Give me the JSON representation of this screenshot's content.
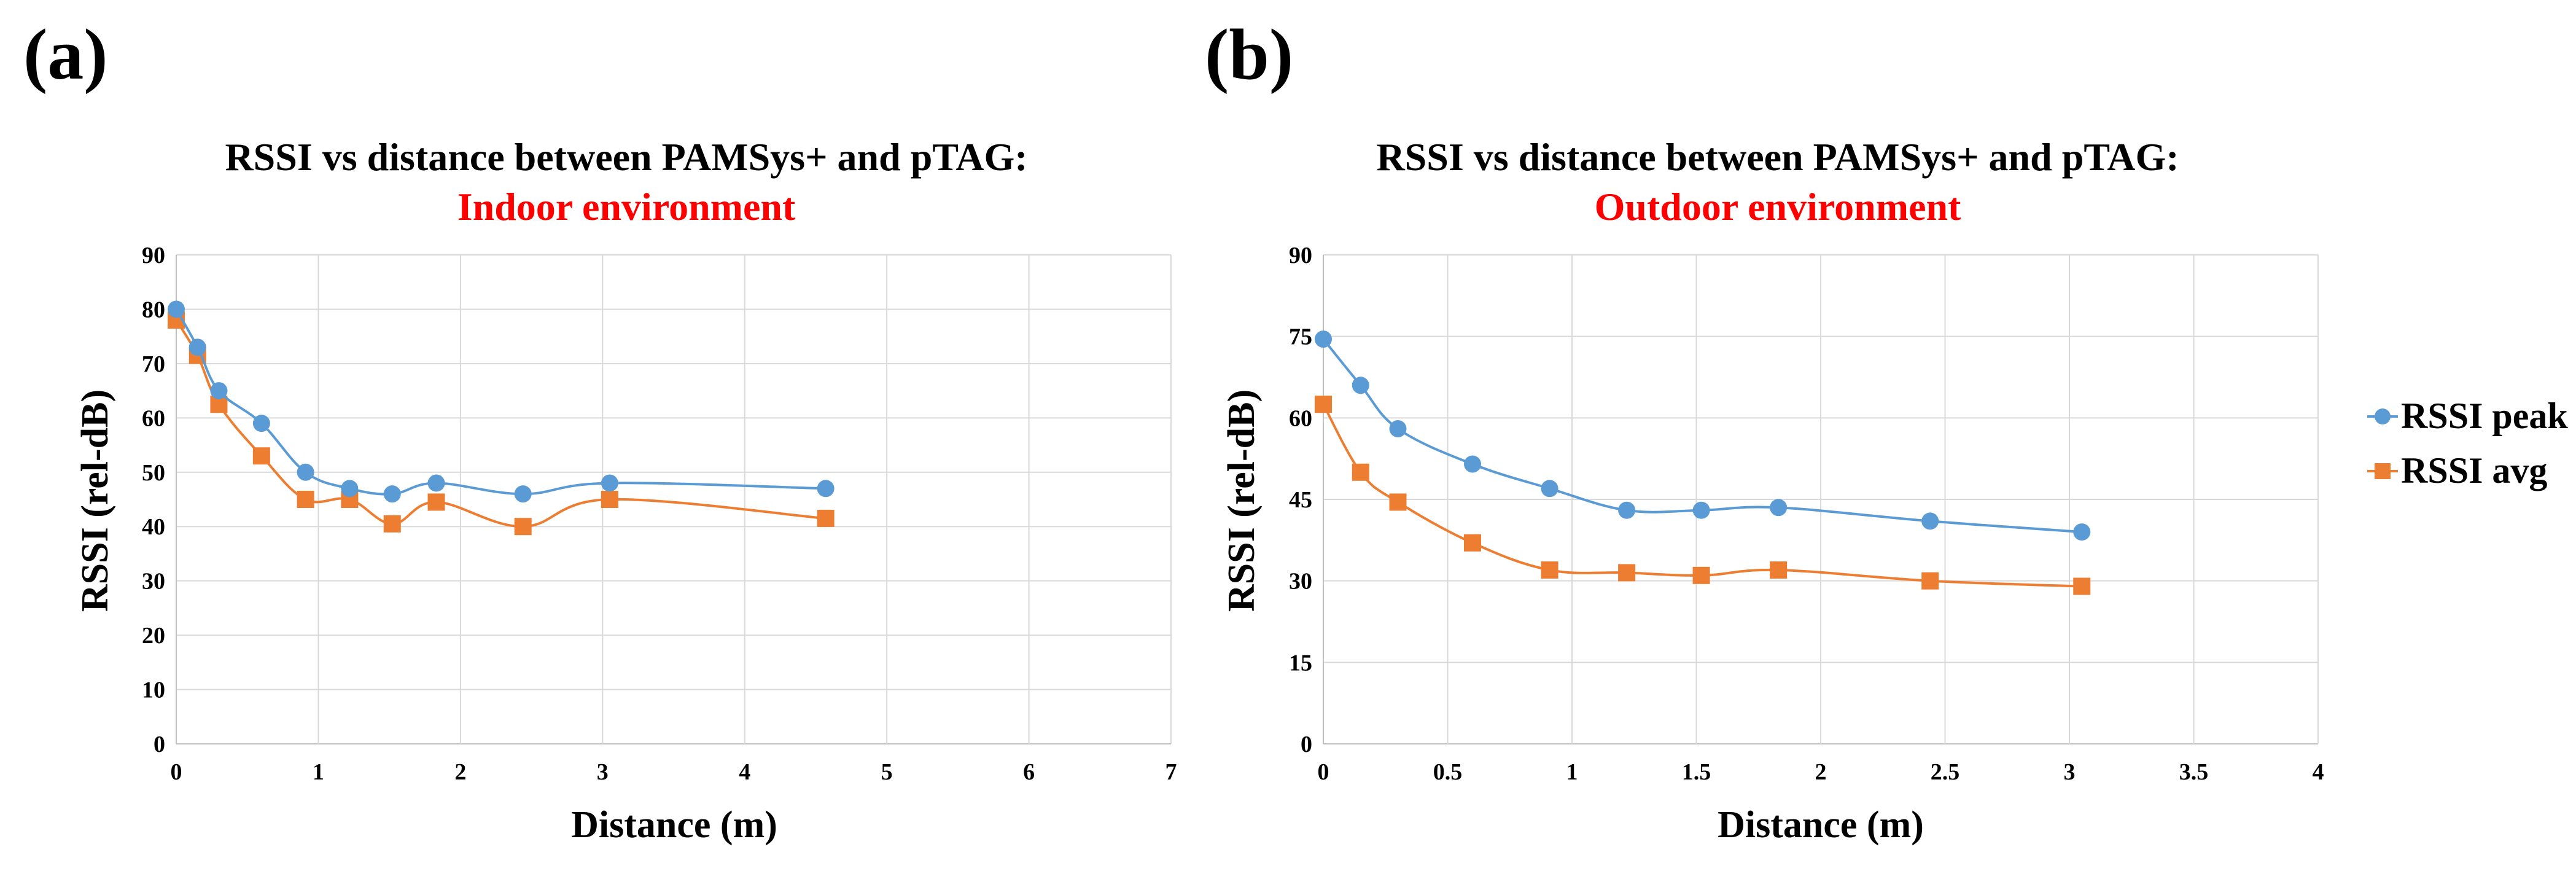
{
  "colors": {
    "peak": "#5b9bd5",
    "avg": "#ed7d31",
    "subtitle": "#ff0000",
    "grid": "#d9d9d9",
    "text": "#000000"
  },
  "legend": {
    "peak_label": "RSSI peak",
    "avg_label": "RSSI avg"
  },
  "chart_data": [
    {
      "panel_label": "(a)",
      "type": "line",
      "title": "RSSI vs distance between PAMSys+ and pTAG:",
      "subtitle": "Indoor environment",
      "xlabel": "Distance (m)",
      "ylabel": "RSSI (rel-dB)",
      "xlim": [
        0,
        7
      ],
      "ylim": [
        0,
        90
      ],
      "xticks": [
        0,
        1,
        2,
        3,
        4,
        5,
        6,
        7
      ],
      "xtick_labels": [
        "0",
        "1",
        "2",
        "3",
        "4",
        "5",
        "6",
        "7"
      ],
      "yticks": [
        0,
        10,
        20,
        30,
        40,
        50,
        60,
        70,
        80,
        90
      ],
      "ytick_labels": [
        "0",
        "10",
        "20",
        "30",
        "40",
        "50",
        "60",
        "70",
        "80",
        "90"
      ],
      "x": [
        0,
        0.15,
        0.3,
        0.6,
        0.91,
        1.22,
        1.52,
        1.83,
        2.44,
        3.05,
        4.57
      ],
      "series": [
        {
          "name": "RSSI peak",
          "marker": "circle",
          "values": [
            80,
            73,
            65,
            59,
            50,
            47,
            46,
            48,
            46,
            48,
            47
          ]
        },
        {
          "name": "RSSI avg",
          "marker": "square",
          "values": [
            78,
            71.5,
            62.5,
            53,
            45,
            45,
            40.5,
            44.5,
            40,
            45,
            41.5
          ]
        }
      ]
    },
    {
      "panel_label": "(b)",
      "type": "line",
      "title": "RSSI vs distance between PAMSys+ and pTAG:",
      "subtitle": "Outdoor environment",
      "xlabel": "Distance (m)",
      "ylabel": "RSSI (rel-dB)",
      "xlim": [
        0,
        4
      ],
      "ylim": [
        0,
        90
      ],
      "xticks": [
        0,
        0.5,
        1,
        1.5,
        2,
        2.5,
        3,
        3.5,
        4
      ],
      "xtick_labels": [
        "0",
        "0.5",
        "1",
        "1.5",
        "2",
        "2.5",
        "3",
        "3.5",
        "4"
      ],
      "yticks": [
        0,
        15,
        30,
        45,
        60,
        75,
        90
      ],
      "ytick_labels": [
        "0",
        "15",
        "30",
        "45",
        "60",
        "75",
        "90"
      ],
      "x": [
        0,
        0.15,
        0.3,
        0.6,
        0.91,
        1.22,
        1.52,
        1.83,
        2.44,
        3.05
      ],
      "series": [
        {
          "name": "RSSI peak",
          "marker": "circle",
          "values": [
            74.5,
            66,
            58,
            51.5,
            47,
            43,
            43,
            43.5,
            41,
            39
          ]
        },
        {
          "name": "RSSI avg",
          "marker": "square",
          "values": [
            62.5,
            50,
            44.5,
            37,
            32,
            31.5,
            31,
            32,
            30,
            29
          ]
        }
      ]
    }
  ]
}
